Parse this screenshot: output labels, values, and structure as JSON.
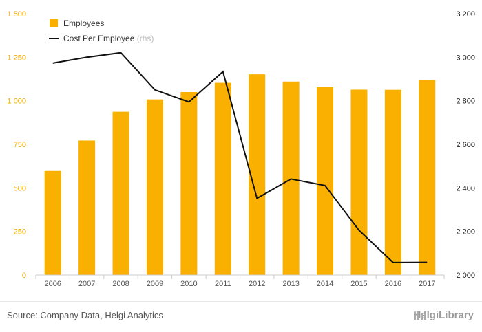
{
  "chart_data": {
    "type": "bar+line",
    "categories": [
      "2006",
      "2007",
      "2008",
      "2009",
      "2010",
      "2011",
      "2012",
      "2013",
      "2014",
      "2015",
      "2016",
      "2017"
    ],
    "series": [
      {
        "name": "Employees",
        "type": "bar",
        "axis": "left",
        "color": "#f9b000",
        "values": [
          597,
          772,
          937,
          1008,
          1050,
          1103,
          1152,
          1110,
          1078,
          1064,
          1063,
          1119
        ]
      },
      {
        "name": "Cost Per Employee",
        "legend_suffix": "(rhs)",
        "type": "line",
        "axis": "right",
        "color": "#111111",
        "values": [
          2973,
          3000,
          3021,
          2850,
          2795,
          2934,
          2352,
          2441,
          2411,
          2205,
          2057,
          2058
        ]
      }
    ],
    "y_left": {
      "ticks": [
        "0",
        "250",
        "500",
        "750",
        "1 000",
        "1 250",
        "1 500"
      ],
      "min": 0,
      "max": 1500,
      "color": "#f0a800"
    },
    "y_right": {
      "ticks": [
        "2 000",
        "2 200",
        "2 400",
        "2 600",
        "2 800",
        "3 000",
        "3 200"
      ],
      "min": 2000,
      "max": 3200
    },
    "grid": false,
    "legend_position": "top-left"
  },
  "footer": {
    "source": "Source: Company Data, Helgi Analytics",
    "brand": "HelgiLibrary"
  }
}
